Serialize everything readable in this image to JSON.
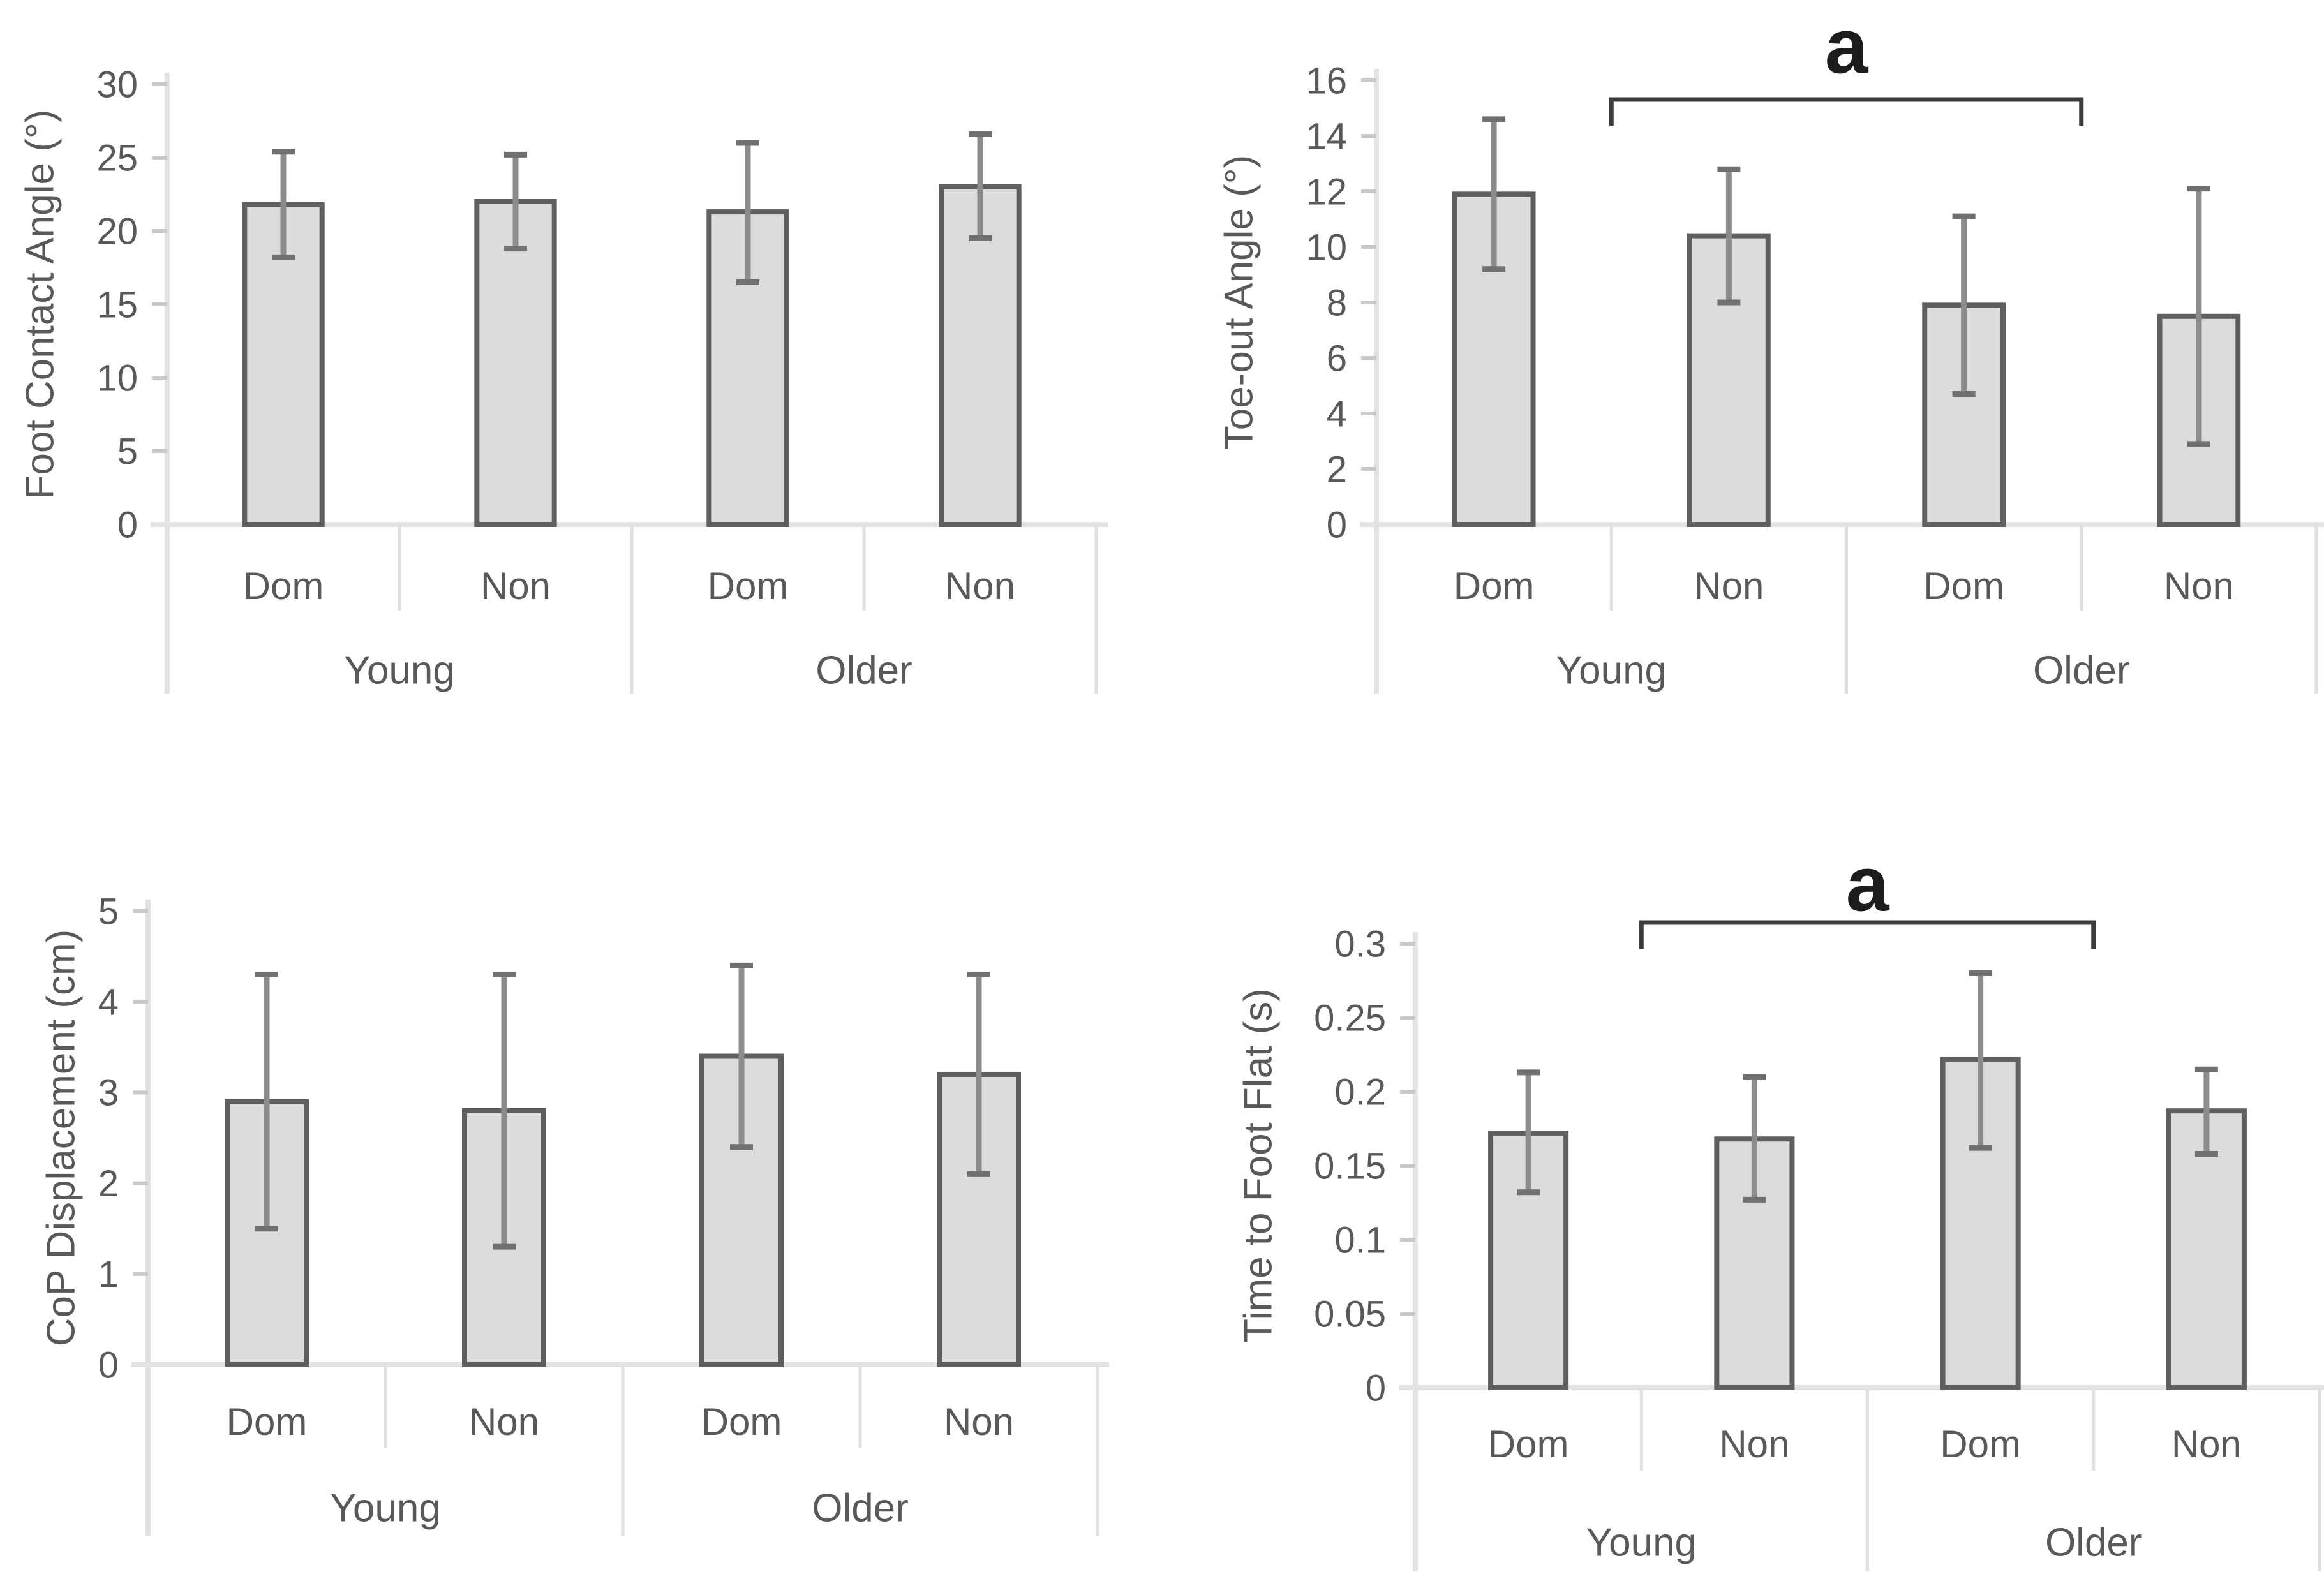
{
  "page": {
    "background": "#ffffff"
  },
  "colors": {
    "bar_fill": "#dcdcdc",
    "bar_border": "#5f5f5f",
    "error_line": "#8c8c8c",
    "error_cap": "#707070",
    "axis_line": "#e3e3e3",
    "separator_line": "#e0e0e0",
    "tick_mark": "#c9c9c9",
    "tick_text": "#595959",
    "label_text": "#595959",
    "bracket": "#3c3c3c",
    "annotation_text": "#1c1c1c"
  },
  "chart_data": [
    {
      "type": "bar",
      "id": "foot-contact-angle",
      "title": "",
      "xlabel": "",
      "ylabel": "Foot Contact Angle (°)",
      "ylim": [
        0,
        30
      ],
      "grid": false,
      "legend": null,
      "yticks": {
        "values": [
          0,
          5,
          10,
          15,
          20,
          25,
          30
        ],
        "labels": [
          "0",
          "5",
          "10",
          "15",
          "20",
          "25",
          "30"
        ]
      },
      "group_labels": [
        "Young",
        "Older"
      ],
      "categories": [
        "Dom",
        "Non",
        "Dom",
        "Non"
      ],
      "values": [
        21.8,
        22.0,
        21.3,
        23.0
      ],
      "err_low": [
        18.2,
        18.8,
        16.5,
        19.5
      ],
      "err_high": [
        25.4,
        25.2,
        26.0,
        26.6
      ],
      "annotation": null
    },
    {
      "type": "bar",
      "id": "toe-out-angle",
      "title": "",
      "xlabel": "",
      "ylabel": "Toe-out Angle (°)",
      "ylim": [
        0,
        16
      ],
      "grid": false,
      "legend": null,
      "yticks": {
        "values": [
          0,
          2,
          4,
          6,
          8,
          10,
          12,
          14,
          16
        ],
        "labels": [
          "0",
          "2",
          "4",
          "6",
          "8",
          "10",
          "12",
          "14",
          "16"
        ]
      },
      "group_labels": [
        "Young",
        "Older"
      ],
      "categories": [
        "Dom",
        "Non",
        "Dom",
        "Non"
      ],
      "values": [
        11.9,
        10.4,
        7.9,
        7.5
      ],
      "err_low": [
        9.2,
        8.0,
        4.7,
        2.9
      ],
      "err_high": [
        14.6,
        12.8,
        11.1,
        12.1
      ],
      "annotation": {
        "label": "a",
        "spans": [
          "Young",
          "Older"
        ]
      }
    },
    {
      "type": "bar",
      "id": "cop-displacement",
      "title": "",
      "xlabel": "",
      "ylabel": "CoP Displacement (cm)",
      "ylim": [
        0,
        5
      ],
      "grid": false,
      "legend": null,
      "yticks": {
        "values": [
          0,
          1,
          2,
          3,
          4,
          5
        ],
        "labels": [
          "0",
          "1",
          "2",
          "3",
          "4",
          "5"
        ]
      },
      "group_labels": [
        "Young",
        "Older"
      ],
      "categories": [
        "Dom",
        "Non",
        "Dom",
        "Non"
      ],
      "values": [
        2.9,
        2.8,
        3.4,
        3.2
      ],
      "err_low": [
        1.5,
        1.3,
        2.4,
        2.1
      ],
      "err_high": [
        4.3,
        4.3,
        4.4,
        4.3
      ],
      "annotation": null
    },
    {
      "type": "bar",
      "id": "time-to-foot-flat",
      "title": "",
      "xlabel": "",
      "ylabel": "Time to Foot Flat (s)",
      "ylim": [
        0,
        0.3
      ],
      "grid": false,
      "legend": null,
      "yticks": {
        "values": [
          0,
          0.05,
          0.1,
          0.15,
          0.2,
          0.25,
          0.3
        ],
        "labels": [
          "0",
          "0.05",
          "0.1",
          "0.15",
          "0.2",
          "0.25",
          "0.3"
        ]
      },
      "group_labels": [
        "Young",
        "Older"
      ],
      "categories": [
        "Dom",
        "Non",
        "Dom",
        "Non"
      ],
      "values": [
        0.172,
        0.168,
        0.222,
        0.187
      ],
      "err_low": [
        0.132,
        0.127,
        0.162,
        0.158
      ],
      "err_high": [
        0.213,
        0.21,
        0.28,
        0.215
      ],
      "annotation": {
        "label": "a",
        "spans": [
          "Young",
          "Older"
        ]
      }
    }
  ]
}
